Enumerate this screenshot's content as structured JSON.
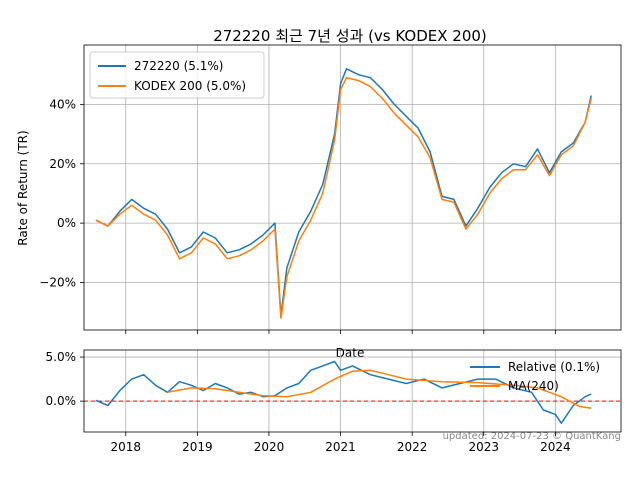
{
  "chart_data": [
    {
      "type": "line",
      "title": "272220 최근 7년 성과 (vs KODEX 200)",
      "xlabel": "Date",
      "ylabel": "Rate of Return (TR)",
      "xlim": [
        "2017-06",
        "2024-12"
      ],
      "ylim": [
        -36,
        60
      ],
      "yticks": [
        "−20%",
        "0%",
        "20%",
        "40%"
      ],
      "xticks": [
        "2018",
        "2019",
        "2020",
        "2021",
        "2022",
        "2023",
        "2024"
      ],
      "grid": true,
      "legend": "top-left",
      "series": [
        {
          "name": "272220 (5.1%)",
          "color": "#1f77b4",
          "x": [
            "2017-08",
            "2017-10",
            "2017-12",
            "2018-02",
            "2018-04",
            "2018-06",
            "2018-08",
            "2018-10",
            "2018-12",
            "2019-02",
            "2019-04",
            "2019-06",
            "2019-08",
            "2019-10",
            "2019-12",
            "2020-02",
            "2020-03",
            "2020-04",
            "2020-06",
            "2020-08",
            "2020-10",
            "2020-12",
            "2021-01",
            "2021-02",
            "2021-04",
            "2021-06",
            "2021-08",
            "2021-10",
            "2021-12",
            "2022-02",
            "2022-04",
            "2022-06",
            "2022-08",
            "2022-10",
            "2022-12",
            "2023-02",
            "2023-04",
            "2023-06",
            "2023-08",
            "2023-10",
            "2023-12",
            "2024-02",
            "2024-04",
            "2024-06",
            "2024-07"
          ],
          "y": [
            1,
            -1,
            4,
            8,
            5,
            3,
            -2,
            -10,
            -8,
            -3,
            -5,
            -10,
            -9,
            -7,
            -4,
            0,
            -31,
            -15,
            -3,
            4,
            13,
            30,
            47,
            52,
            50,
            49,
            45,
            40,
            36,
            32,
            24,
            9,
            8,
            -1,
            5,
            12,
            17,
            20,
            19,
            25,
            17,
            24,
            27,
            34,
            43
          ]
        },
        {
          "name": "KODEX 200 (5.0%)",
          "color": "#ff7f0e",
          "x": [
            "2017-08",
            "2017-10",
            "2017-12",
            "2018-02",
            "2018-04",
            "2018-06",
            "2018-08",
            "2018-10",
            "2018-12",
            "2019-02",
            "2019-04",
            "2019-06",
            "2019-08",
            "2019-10",
            "2019-12",
            "2020-02",
            "2020-03",
            "2020-04",
            "2020-06",
            "2020-08",
            "2020-10",
            "2020-12",
            "2021-01",
            "2021-02",
            "2021-04",
            "2021-06",
            "2021-08",
            "2021-10",
            "2021-12",
            "2022-02",
            "2022-04",
            "2022-06",
            "2022-08",
            "2022-10",
            "2022-12",
            "2023-02",
            "2023-04",
            "2023-06",
            "2023-08",
            "2023-10",
            "2023-12",
            "2024-02",
            "2024-04",
            "2024-06",
            "2024-07"
          ],
          "y": [
            1,
            -1,
            3,
            6,
            3,
            1,
            -4,
            -12,
            -10,
            -5,
            -7,
            -12,
            -11,
            -9,
            -6,
            -2,
            -32,
            -18,
            -6,
            1,
            10,
            28,
            45,
            49,
            48,
            46,
            42,
            37,
            33,
            29,
            22,
            8,
            7,
            -2,
            3,
            10,
            15,
            18,
            18,
            23,
            16,
            23,
            26,
            34,
            42
          ]
        }
      ]
    },
    {
      "type": "line",
      "ylim": [
        -0.035,
        0.058
      ],
      "yticks": [
        "0.0%",
        "5.0%"
      ],
      "xticks": [
        "2018",
        "2019",
        "2020",
        "2021",
        "2022",
        "2023",
        "2024"
      ],
      "grid": true,
      "legend": "top-right",
      "reference_line": {
        "y": 0,
        "color": "#ff0000",
        "style": "dashed"
      },
      "series": [
        {
          "name": "Relative (0.1%)",
          "color": "#1f77b4",
          "x": [
            "2017-08",
            "2017-10",
            "2017-12",
            "2018-02",
            "2018-04",
            "2018-06",
            "2018-08",
            "2018-10",
            "2018-12",
            "2019-02",
            "2019-04",
            "2019-06",
            "2019-08",
            "2019-10",
            "2019-12",
            "2020-02",
            "2020-04",
            "2020-06",
            "2020-08",
            "2020-10",
            "2020-12",
            "2021-01",
            "2021-03",
            "2021-06",
            "2021-09",
            "2021-12",
            "2022-03",
            "2022-06",
            "2022-09",
            "2022-12",
            "2023-03",
            "2023-06",
            "2023-09",
            "2023-11",
            "2024-01",
            "2024-02",
            "2024-04",
            "2024-06",
            "2024-07"
          ],
          "y": [
            0.001,
            -0.005,
            0.012,
            0.025,
            0.03,
            0.018,
            0.01,
            0.022,
            0.018,
            0.012,
            0.02,
            0.015,
            0.008,
            0.01,
            0.005,
            0.006,
            0.015,
            0.02,
            0.035,
            0.04,
            0.045,
            0.035,
            0.04,
            0.03,
            0.025,
            0.02,
            0.025,
            0.015,
            0.02,
            0.025,
            0.025,
            0.015,
            0.01,
            -0.01,
            -0.015,
            -0.025,
            -0.005,
            0.005,
            0.008
          ]
        },
        {
          "name": "MA(240)",
          "color": "#ff7f0e",
          "x": [
            "2018-08",
            "2018-12",
            "2019-04",
            "2019-08",
            "2019-12",
            "2020-04",
            "2020-08",
            "2020-12",
            "2021-03",
            "2021-06",
            "2021-09",
            "2021-12",
            "2022-06",
            "2022-12",
            "2023-06",
            "2023-10",
            "2024-02",
            "2024-05",
            "2024-07"
          ],
          "y": [
            0.01,
            0.015,
            0.014,
            0.01,
            0.006,
            0.005,
            0.01,
            0.025,
            0.034,
            0.035,
            0.03,
            0.025,
            0.022,
            0.021,
            0.018,
            0.015,
            0.005,
            -0.006,
            -0.008
          ]
        }
      ]
    }
  ],
  "footnote": "updated: 2024-07-23 © QuantKang"
}
